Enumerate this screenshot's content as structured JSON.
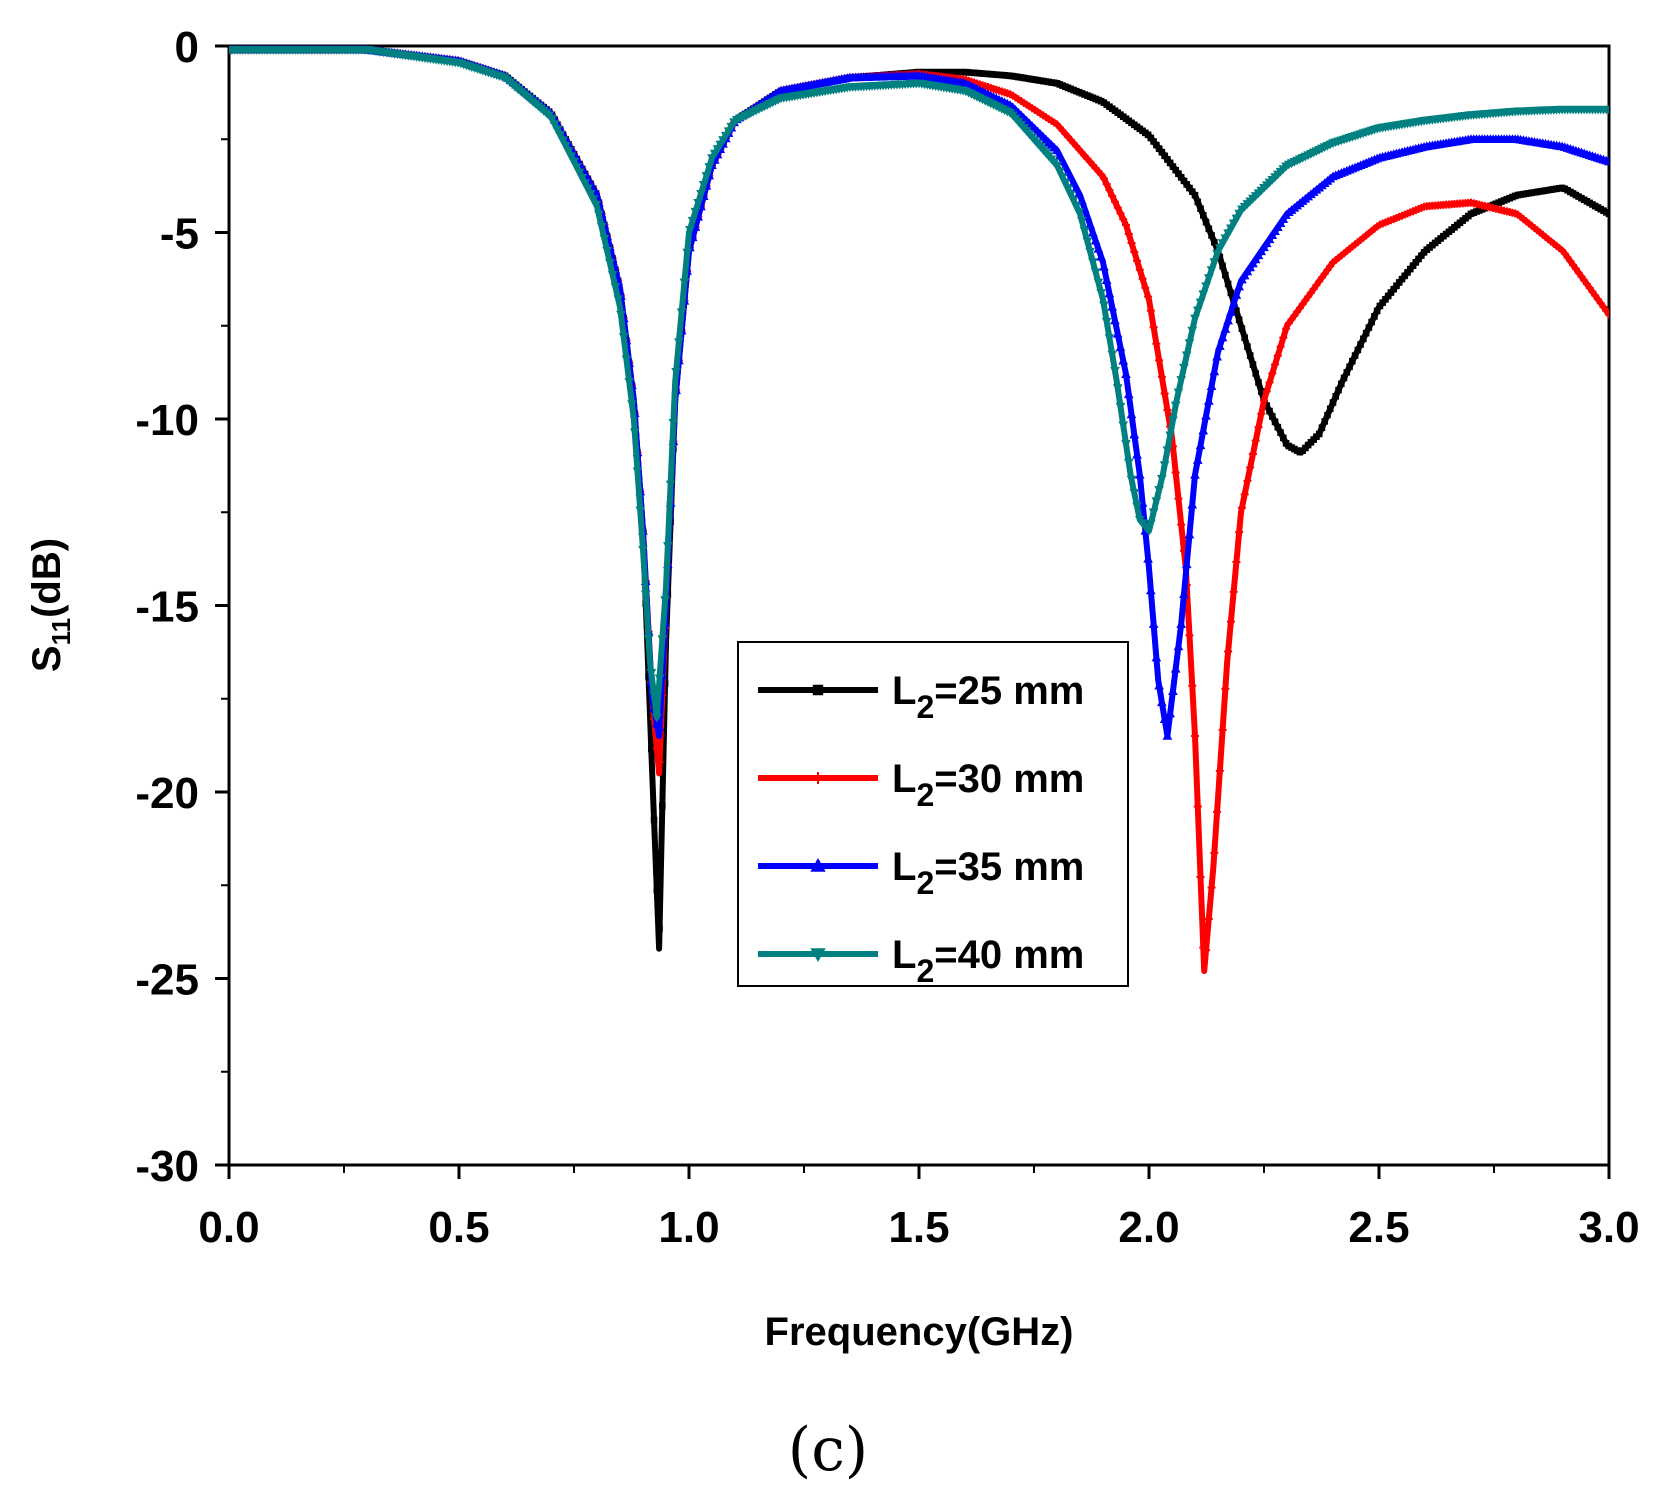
{
  "chart_data": {
    "type": "line",
    "title": "",
    "caption": "(c)",
    "xlabel": "Frequency(GHz)",
    "ylabel": {
      "base": "S",
      "sub": "11",
      "rest": "(dB)"
    },
    "xlim": [
      0.0,
      3.0
    ],
    "ylim": [
      -30,
      0
    ],
    "x_ticks": [
      "0.0",
      "0.5",
      "1.0",
      "1.5",
      "2.0",
      "2.5",
      "3.0"
    ],
    "x_tick_values": [
      0.0,
      0.5,
      1.0,
      1.5,
      2.0,
      2.5,
      3.0
    ],
    "y_ticks": [
      "0",
      "-5",
      "-10",
      "-15",
      "-20",
      "-25",
      "-30"
    ],
    "y_tick_values": [
      0,
      -5,
      -10,
      -15,
      -20,
      -25,
      -30
    ],
    "grid": false,
    "legend_position": "center-right",
    "series": [
      {
        "name": "L2=25 mm",
        "label_base": "L",
        "label_sub": "2",
        "label_rest": "=25 mm",
        "color": "#000000",
        "marker": "square",
        "x": [
          0.0,
          0.3,
          0.5,
          0.6,
          0.7,
          0.8,
          0.85,
          0.88,
          0.9,
          0.92,
          0.935,
          0.95,
          0.97,
          1.0,
          1.05,
          1.1,
          1.2,
          1.35,
          1.5,
          1.6,
          1.7,
          1.8,
          1.9,
          2.0,
          2.1,
          2.15,
          2.2,
          2.25,
          2.3,
          2.33,
          2.37,
          2.42,
          2.5,
          2.6,
          2.7,
          2.8,
          2.9,
          3.0
        ],
        "y": [
          -0.1,
          -0.1,
          -0.4,
          -0.8,
          -1.8,
          -4.0,
          -6.5,
          -9.5,
          -13.0,
          -19.5,
          -24.2,
          -16.0,
          -9.5,
          -5.5,
          -3.2,
          -2.0,
          -1.2,
          -0.85,
          -0.7,
          -0.7,
          -0.8,
          -1.0,
          -1.5,
          -2.4,
          -4.0,
          -5.5,
          -7.5,
          -9.5,
          -10.7,
          -10.9,
          -10.4,
          -9.0,
          -7.0,
          -5.5,
          -4.5,
          -4.0,
          -3.8,
          -4.5
        ]
      },
      {
        "name": "L2=30 mm",
        "label_base": "L",
        "label_sub": "2",
        "label_rest": "=30 mm",
        "color": "#ff0000",
        "marker": "plus",
        "x": [
          0.0,
          0.3,
          0.5,
          0.6,
          0.7,
          0.8,
          0.85,
          0.88,
          0.9,
          0.92,
          0.935,
          0.95,
          0.97,
          1.0,
          1.05,
          1.1,
          1.2,
          1.35,
          1.5,
          1.6,
          1.7,
          1.8,
          1.9,
          1.95,
          2.0,
          2.05,
          2.08,
          2.1,
          2.12,
          2.14,
          2.17,
          2.2,
          2.25,
          2.3,
          2.4,
          2.5,
          2.6,
          2.7,
          2.8,
          2.9,
          3.0
        ],
        "y": [
          -0.1,
          -0.1,
          -0.4,
          -0.8,
          -1.8,
          -4.0,
          -6.5,
          -9.5,
          -13.0,
          -17.5,
          -19.5,
          -15.0,
          -9.5,
          -5.5,
          -3.2,
          -2.0,
          -1.2,
          -0.85,
          -0.75,
          -0.9,
          -1.3,
          -2.1,
          -3.5,
          -4.8,
          -6.8,
          -10.5,
          -14.0,
          -18.5,
          -24.8,
          -22.0,
          -16.5,
          -12.5,
          -9.5,
          -7.5,
          -5.8,
          -4.8,
          -4.3,
          -4.2,
          -4.5,
          -5.5,
          -7.2
        ]
      },
      {
        "name": "L2=35 mm",
        "label_base": "L",
        "label_sub": "2",
        "label_rest": "=35 mm",
        "color": "#0000ff",
        "marker": "triangle-up",
        "x": [
          0.0,
          0.3,
          0.5,
          0.6,
          0.7,
          0.8,
          0.85,
          0.88,
          0.9,
          0.92,
          0.935,
          0.95,
          0.97,
          1.0,
          1.05,
          1.1,
          1.2,
          1.35,
          1.5,
          1.6,
          1.7,
          1.8,
          1.85,
          1.9,
          1.95,
          1.98,
          2.0,
          2.02,
          2.04,
          2.07,
          2.1,
          2.15,
          2.2,
          2.3,
          2.4,
          2.5,
          2.6,
          2.7,
          2.8,
          2.9,
          3.0
        ],
        "y": [
          -0.1,
          -0.1,
          -0.4,
          -0.8,
          -1.8,
          -4.0,
          -6.5,
          -9.5,
          -13.0,
          -17.5,
          -18.5,
          -15.0,
          -9.5,
          -5.5,
          -3.2,
          -2.0,
          -1.2,
          -0.85,
          -0.8,
          -1.0,
          -1.6,
          -2.8,
          -4.0,
          -5.8,
          -8.8,
          -11.5,
          -14.0,
          -17.0,
          -18.5,
          -15.5,
          -11.5,
          -8.2,
          -6.3,
          -4.5,
          -3.5,
          -3.0,
          -2.7,
          -2.5,
          -2.5,
          -2.7,
          -3.1
        ]
      },
      {
        "name": "L2=40 mm",
        "label_base": "L",
        "label_sub": "2",
        "label_rest": "=40 mm",
        "color": "#008080",
        "marker": "triangle-down",
        "x": [
          0.0,
          0.3,
          0.5,
          0.6,
          0.7,
          0.8,
          0.85,
          0.88,
          0.9,
          0.915,
          0.93,
          0.95,
          0.97,
          1.0,
          1.05,
          1.1,
          1.2,
          1.35,
          1.5,
          1.6,
          1.7,
          1.8,
          1.85,
          1.9,
          1.93,
          1.96,
          1.98,
          2.0,
          2.03,
          2.06,
          2.1,
          2.15,
          2.2,
          2.3,
          2.4,
          2.5,
          2.6,
          2.7,
          2.8,
          2.9,
          3.0
        ],
        "y": [
          -0.1,
          -0.1,
          -0.45,
          -0.85,
          -1.9,
          -4.3,
          -7.0,
          -10.0,
          -13.5,
          -16.5,
          -18.0,
          -14.5,
          -9.0,
          -5.0,
          -3.0,
          -2.0,
          -1.4,
          -1.1,
          -1.0,
          -1.2,
          -1.8,
          -3.2,
          -4.5,
          -6.8,
          -9.0,
          -11.5,
          -12.7,
          -13.0,
          -11.5,
          -9.5,
          -7.3,
          -5.5,
          -4.4,
          -3.2,
          -2.6,
          -2.2,
          -2.0,
          -1.85,
          -1.75,
          -1.7,
          -1.7
        ]
      }
    ]
  }
}
